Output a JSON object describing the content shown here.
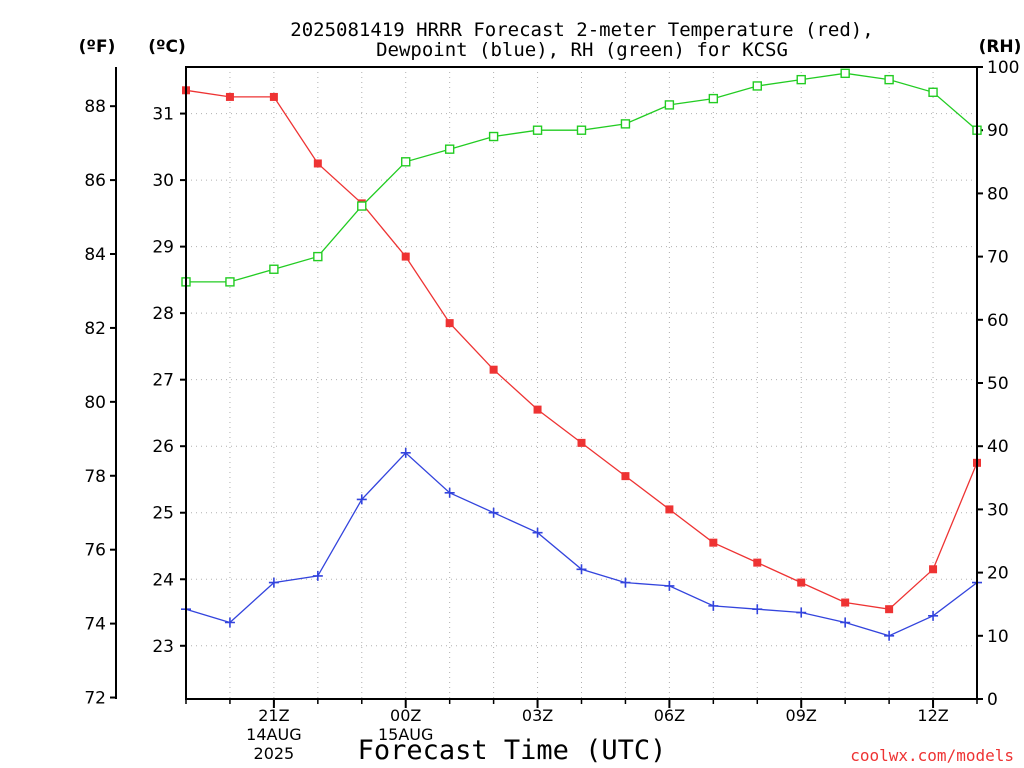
{
  "chart_data": {
    "type": "line",
    "title": [
      "2025081419 HRRR Forecast 2-meter Temperature (red),",
      "Dewpoint (blue), RH (green) for KCSG"
    ],
    "xlabel": "Forecast Time (UTC)",
    "credit": "coolwx.com/models",
    "units": {
      "fahrenheit": "(ºF)",
      "celsius": "(ºC)",
      "rh": "(RH)"
    },
    "x": [
      19,
      20,
      21,
      22,
      23,
      24,
      25,
      26,
      27,
      28,
      29,
      30,
      31,
      32,
      33,
      34,
      35,
      36,
      37
    ],
    "x_ticks": [
      {
        "x": 21,
        "lines": [
          "21Z",
          "14AUG",
          "2025"
        ]
      },
      {
        "x": 24,
        "lines": [
          "00Z",
          "15AUG"
        ]
      },
      {
        "x": 27,
        "lines": [
          "03Z"
        ]
      },
      {
        "x": 30,
        "lines": [
          "06Z"
        ]
      },
      {
        "x": 33,
        "lines": [
          "09Z"
        ]
      },
      {
        "x": 36,
        "lines": [
          "12Z"
        ]
      }
    ],
    "xlim": [
      19,
      37
    ],
    "y_celsius_ticks": [
      23,
      24,
      25,
      26,
      27,
      28,
      29,
      30,
      31
    ],
    "ylim_celsius": [
      22.2,
      31.7
    ],
    "y_fahrenheit_ticks": [
      72,
      74,
      76,
      78,
      80,
      82,
      84,
      86,
      88
    ],
    "y_rh_ticks": [
      0,
      10,
      20,
      30,
      40,
      50,
      60,
      70,
      80,
      90,
      100
    ],
    "ylim_rh": [
      0,
      100
    ],
    "grid": true,
    "series": [
      {
        "name": "Temperature",
        "axis": "celsius",
        "color": "#ee3333",
        "marker": "filled-square",
        "values": [
          31.35,
          31.25,
          31.25,
          30.25,
          29.65,
          28.85,
          27.85,
          27.15,
          26.55,
          26.05,
          25.55,
          25.05,
          24.55,
          24.25,
          23.95,
          23.65,
          23.55,
          24.15,
          25.75
        ]
      },
      {
        "name": "Dewpoint",
        "axis": "celsius",
        "color": "#3344dd",
        "marker": "plus",
        "values": [
          23.55,
          23.35,
          23.95,
          24.05,
          25.2,
          25.9,
          25.3,
          25.0,
          24.7,
          24.15,
          23.95,
          23.9,
          23.6,
          23.55,
          23.5,
          23.35,
          23.15,
          23.45,
          23.95
        ]
      },
      {
        "name": "RH",
        "axis": "rh",
        "color": "#22cc22",
        "marker": "open-square",
        "values": [
          66,
          66,
          68,
          70,
          78,
          85,
          87,
          89,
          90,
          90,
          91,
          94,
          95,
          97,
          98,
          99,
          98,
          96,
          90
        ]
      }
    ]
  }
}
